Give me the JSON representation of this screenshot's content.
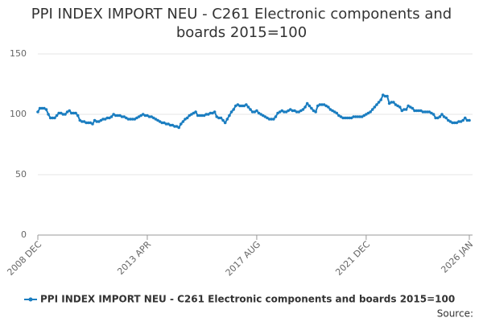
{
  "chart_data": {
    "type": "line",
    "title": "PPI INDEX IMPORT NEU - C261 Electronic components and boards 2015=100",
    "source": "Source:",
    "categories": [
      "2008 DEC",
      null,
      null,
      null,
      null,
      null,
      null,
      null,
      null,
      null,
      null,
      null,
      null,
      null,
      null,
      null,
      null,
      null,
      null,
      null,
      null,
      null,
      null,
      null,
      null,
      null,
      null,
      null,
      null,
      null,
      null,
      null,
      null,
      null,
      null,
      null,
      null,
      null,
      null,
      null,
      null,
      null,
      null,
      null,
      null,
      null,
      null,
      null,
      null,
      null,
      null,
      null,
      "2013 APR",
      null,
      null,
      null,
      null,
      null,
      null,
      null,
      null,
      null,
      null,
      null,
      null,
      null,
      null,
      null,
      null,
      null,
      null,
      null,
      null,
      null,
      null,
      null,
      null,
      null,
      null,
      null,
      null,
      null,
      null,
      null,
      null,
      null,
      null,
      null,
      null,
      null,
      null,
      null,
      null,
      null,
      null,
      null,
      null,
      null,
      null,
      null,
      null,
      null,
      null,
      null,
      "2017 AUG",
      null,
      null,
      null,
      null,
      null,
      null,
      null,
      null,
      null,
      null,
      null,
      null,
      null,
      null,
      null,
      null,
      null,
      null,
      null,
      null,
      null,
      null,
      null,
      null,
      null,
      null,
      null,
      null,
      null,
      null,
      null,
      null,
      null,
      null,
      null,
      null,
      null,
      null,
      null,
      null,
      null,
      null,
      null,
      null,
      null,
      null,
      null,
      null,
      null,
      null,
      null,
      "2021 DEC",
      null,
      null,
      null,
      null,
      null,
      null,
      null,
      null,
      null,
      null,
      null,
      null,
      null,
      null,
      null,
      null,
      null,
      null,
      null,
      null,
      null,
      null,
      null,
      null,
      null,
      null,
      null,
      null,
      null,
      null,
      null,
      null,
      null,
      null,
      null,
      null,
      null,
      null,
      null,
      null,
      null,
      null,
      null,
      null,
      null,
      null,
      null,
      null,
      "2026 JAN"
    ],
    "series": [
      {
        "name": "PPI INDEX IMPORT NEU - C261 Electronic components and boards 2015=100",
        "color": "#1a7dc0",
        "values": [
          102,
          105,
          105,
          105,
          104,
          100,
          97,
          97,
          97,
          99,
          101,
          101,
          100,
          100,
          102,
          103,
          101,
          101,
          101,
          99,
          95,
          94,
          94,
          93,
          93,
          93,
          92,
          95,
          94,
          94,
          95,
          96,
          96,
          97,
          97,
          98,
          100,
          99,
          99,
          99,
          98,
          98,
          97,
          96,
          96,
          96,
          96,
          97,
          98,
          99,
          100,
          99,
          99,
          98,
          98,
          97,
          96,
          95,
          94,
          93,
          93,
          92,
          92,
          91,
          91,
          90,
          90,
          89,
          92,
          94,
          96,
          97,
          99,
          100,
          101,
          102,
          99,
          99,
          99,
          99,
          100,
          100,
          101,
          101,
          102,
          98,
          97,
          97,
          95,
          93,
          96,
          99,
          102,
          104,
          107,
          108,
          107,
          107,
          107,
          108,
          106,
          104,
          102,
          102,
          103,
          101,
          100,
          99,
          98,
          97,
          96,
          96,
          96,
          98,
          101,
          102,
          103,
          102,
          102,
          103,
          104,
          103,
          103,
          102,
          102,
          103,
          104,
          106,
          109,
          107,
          105,
          103,
          102,
          107,
          108,
          108,
          108,
          107,
          106,
          104,
          103,
          102,
          101,
          99,
          98,
          97,
          97,
          97,
          97,
          97,
          98,
          98,
          98,
          98,
          98,
          99,
          100,
          101,
          102,
          104,
          106,
          108,
          110,
          112,
          116,
          115,
          115,
          109,
          110,
          110,
          108,
          107,
          106,
          103,
          104,
          104,
          107,
          106,
          105,
          103,
          103,
          103,
          103,
          102,
          102,
          102,
          102,
          101,
          100,
          97,
          97,
          98,
          100,
          98,
          97,
          95,
          94,
          93,
          93,
          93,
          94,
          94,
          95,
          97,
          95,
          95
        ]
      }
    ],
    "ylim": [
      0,
      150
    ],
    "yticks": [
      0,
      50,
      100,
      150
    ],
    "grid": true,
    "legend": "bottom"
  }
}
